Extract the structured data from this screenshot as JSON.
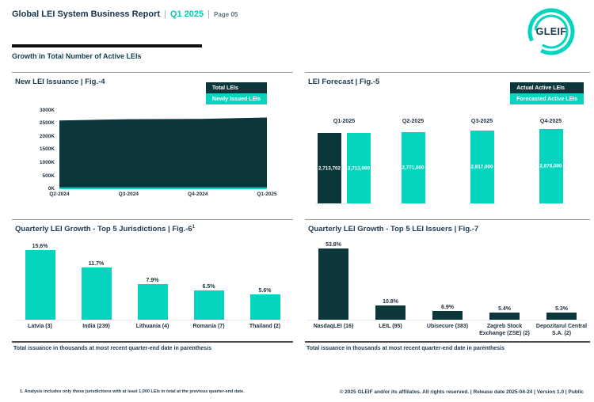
{
  "header": {
    "title": "Global LEI System Business Report",
    "sep": "|",
    "period": "Q1 2025",
    "page": "Page 05",
    "logo_text": "GLEIF"
  },
  "section": {
    "title": "Growth in Total Number of Active LEIs"
  },
  "colors": {
    "teal": "#05D5BE",
    "dark": "#0B363A",
    "navy": "#1C3B52"
  },
  "chart_data": [
    {
      "id": "fig4",
      "type": "area",
      "title": "New LEI Issuance | Fig.-4",
      "legend": [
        "Total LEIs",
        "Newly Issued LEIs"
      ],
      "x": [
        "Q2-2024",
        "Q3-2024",
        "Q4-2024",
        "Q1-2025"
      ],
      "series": [
        {
          "name": "Total LEIs",
          "values_k": [
            2600,
            2652,
            2662,
            2714
          ],
          "color": "#0B363A"
        },
        {
          "name": "Newly Issued LEIs",
          "values_k": [
            65,
            68,
            66,
            70
          ],
          "color": "#05D5BE"
        }
      ],
      "y_ticks": [
        "3000K",
        "2500K",
        "2000K",
        "1500K",
        "1000K",
        "500K",
        "0K"
      ],
      "ylim_k": [
        0,
        3000
      ],
      "legend_position": "top-right",
      "grid": false
    },
    {
      "id": "fig5",
      "type": "bar",
      "title": "LEI Forecast | Fig.-5",
      "legend": [
        "Actual Active LEIs",
        "Forecasted Active LEIs"
      ],
      "categories": [
        "Q1-2025",
        "Q2-2025",
        "Q3-2025",
        "Q4-2025"
      ],
      "groups": [
        {
          "quarter": "Q1-2025",
          "bars": [
            {
              "kind": "actual",
              "value": 2713702,
              "label": "2,713,702"
            },
            {
              "kind": "forecast",
              "value": 2713000,
              "label": "2,713,000"
            }
          ]
        },
        {
          "quarter": "Q2-2025",
          "bars": [
            {
              "kind": "forecast",
              "value": 2771000,
              "label": "2,771,000"
            }
          ]
        },
        {
          "quarter": "Q3-2025",
          "bars": [
            {
              "kind": "forecast",
              "value": 2817000,
              "label": "2,817,000"
            }
          ]
        },
        {
          "quarter": "Q4-2025",
          "bars": [
            {
              "kind": "forecast",
              "value": 2878000,
              "label": "2,878,000"
            }
          ]
        }
      ],
      "legend_position": "top-right",
      "grid": false
    },
    {
      "id": "fig6",
      "type": "bar",
      "title": "Quarterly LEI Growth - Top 5 Jurisdictions | Fig.-6",
      "title_sup": "1",
      "categories": [
        "Latvia (3)",
        "India (239)",
        "Lithuania (4)",
        "Romania (7)",
        "Thailand (2)"
      ],
      "values_pct": [
        15.6,
        11.7,
        7.9,
        6.5,
        5.6
      ],
      "labels": [
        "15.6%",
        "11.7%",
        "7.9%",
        "6.5%",
        "5.6%"
      ],
      "bar_color": "#05D5BE",
      "footer": "Total issuance in thousands at most recent quarter-end date in parenthesis",
      "grid": false
    },
    {
      "id": "fig7",
      "type": "bar",
      "title": "Quarterly LEI Growth - Top 5 LEI Issuers | Fig.-7",
      "categories": [
        "NasdaqLEI (16)",
        "LEIL (95)",
        "Ubisecure (383)",
        "Zagreb Stock Exchange (ZSE) (2)",
        "Depozitarul Central S.A. (2)"
      ],
      "values_pct": [
        53.8,
        10.8,
        6.9,
        5.4,
        5.3
      ],
      "labels": [
        "53.8%",
        "10.8%",
        "6.9%",
        "5.4%",
        "5.3%"
      ],
      "bar_color": "#0B363A",
      "footer": "Total issuance in thousands at most recent quarter-end date in parenthesis",
      "grid": false
    }
  ],
  "footer": {
    "footnote": "1. Analysis includes only those jurisdictions with at least 1,000 LEIs in total at the previous quarter-end date.",
    "copyright": "© 2025 GLEIF and/or its affiliates. All rights reserved. | Release date 2025-04-24 | Version 1.0 | Public"
  }
}
